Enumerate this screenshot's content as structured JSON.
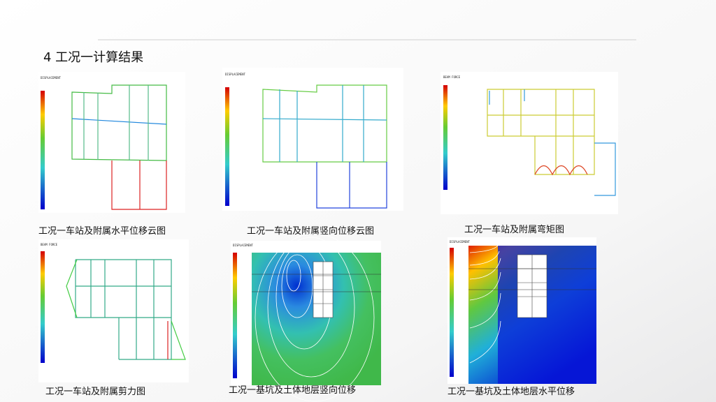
{
  "header": {
    "title": "4 工况一计算结果"
  },
  "panels": [
    {
      "label": "DISPLACEMENT",
      "caption": "工况一车站及附属水平位移云图"
    },
    {
      "label": "DISPLACEMENT",
      "caption": "工况一车站及附属竖向位移云图"
    },
    {
      "label": "BEAM FORCE",
      "caption": "工况一车站及附属弯矩图"
    },
    {
      "label": "BEAM FORCE",
      "caption": "工况一车站及附属剪力图"
    },
    {
      "label": "DISPLACEMENT",
      "caption": "工况一基坑及土体地层竖向位移"
    },
    {
      "label": "DISPLACEMENT",
      "caption": "工况一基坑及土体地层水平位移"
    }
  ]
}
